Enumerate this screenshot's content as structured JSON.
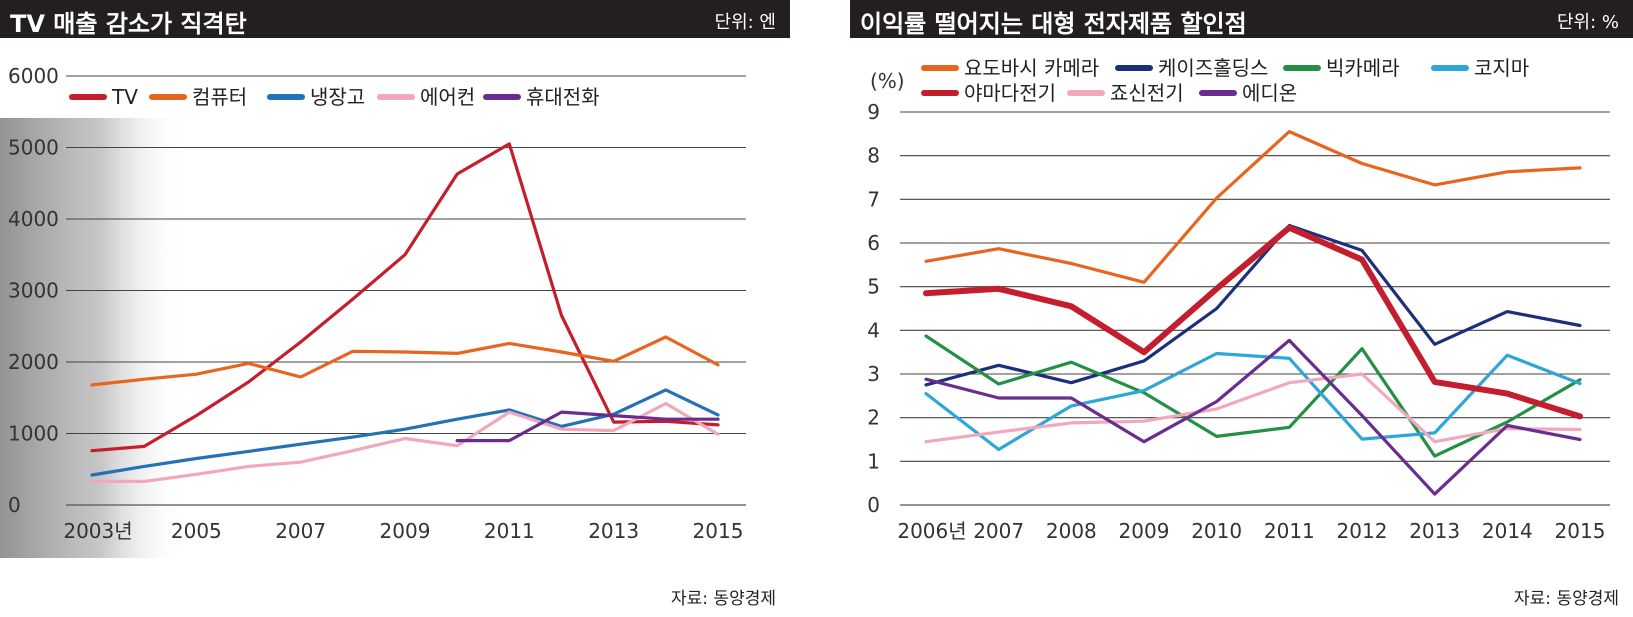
{
  "left": {
    "title": "TV 매출 감소가 직격탄",
    "unit": "단위: 엔",
    "source": "자료: 동양경제",
    "x_tick_labels": [
      "2003년",
      "2005",
      "2007",
      "2009",
      "2011",
      "2013",
      "2015"
    ],
    "y_tick_labels": [
      "0",
      "1000",
      "2000",
      "3000",
      "4000",
      "5000",
      "6000"
    ]
  },
  "right": {
    "title": "이익률 떨어지는 대형 전자제품 할인점",
    "unit": "단위: %",
    "source": "자료: 동양경제",
    "y_unit_label": "(%)",
    "x_tick_labels": [
      "2006년",
      "2007",
      "2008",
      "2009",
      "2010",
      "2011",
      "2012",
      "2013",
      "2014",
      "2015"
    ],
    "y_tick_labels": [
      "0",
      "1",
      "2",
      "3",
      "4",
      "5",
      "6",
      "7",
      "8",
      "9"
    ]
  },
  "chart_data": [
    {
      "type": "line",
      "title": "TV 매출 감소가 직격탄",
      "unit": "단위: 엔",
      "x": [
        2003,
        2004,
        2005,
        2006,
        2007,
        2008,
        2009,
        2010,
        2011,
        2012,
        2013,
        2014,
        2015
      ],
      "ylim": [
        0,
        6000
      ],
      "grid": true,
      "legend": "top",
      "series": [
        {
          "name": "TV",
          "color": "#c41e2e",
          "values": [
            760,
            820,
            1250,
            1720,
            2280,
            2880,
            3500,
            4630,
            5050,
            2650,
            1160,
            1170,
            1120
          ]
        },
        {
          "name": "컴퓨터",
          "color": "#e8651f",
          "values": [
            1680,
            1760,
            1830,
            1980,
            1790,
            2150,
            2140,
            2120,
            2260,
            2140,
            2010,
            2350,
            1960
          ]
        },
        {
          "name": "냉장고",
          "color": "#2272b5",
          "values": [
            420,
            540,
            650,
            750,
            850,
            950,
            1060,
            1200,
            1330,
            1100,
            1270,
            1610,
            1260
          ]
        },
        {
          "name": "에어컨",
          "color": "#f2a7bd",
          "values": [
            330,
            330,
            430,
            540,
            600,
            760,
            930,
            830,
            1300,
            1060,
            1040,
            1420,
            990
          ]
        },
        {
          "name": "휴대전화",
          "color": "#6a2c8e",
          "values": [
            null,
            null,
            null,
            null,
            null,
            null,
            null,
            900,
            900,
            1300,
            1250,
            1200,
            1200
          ]
        }
      ]
    },
    {
      "type": "line",
      "title": "이익률 떨어지는 대형 전자제품 할인점",
      "unit": "단위: %",
      "x": [
        2006,
        2007,
        2008,
        2009,
        2010,
        2011,
        2012,
        2013,
        2014,
        2015
      ],
      "ylim": [
        0,
        9
      ],
      "ylabel": "(%)",
      "grid": true,
      "legend": "top",
      "series": [
        {
          "name": "요도바시 카메라",
          "color": "#e8651f",
          "values": [
            5.58,
            5.87,
            5.53,
            5.1,
            7.03,
            8.55,
            7.82,
            7.33,
            7.63,
            7.72
          ]
        },
        {
          "name": "케이즈홀딩스",
          "color": "#1c2f7a",
          "values": [
            2.75,
            3.2,
            2.8,
            3.3,
            4.5,
            6.4,
            5.83,
            3.68,
            4.43,
            4.11
          ]
        },
        {
          "name": "빅카메라",
          "color": "#239045",
          "values": [
            3.87,
            2.77,
            3.27,
            2.57,
            1.57,
            1.78,
            3.58,
            1.12,
            1.9,
            2.87
          ]
        },
        {
          "name": "코지마",
          "color": "#2ea6d9",
          "values": [
            2.55,
            1.27,
            2.27,
            2.62,
            3.47,
            3.36,
            1.51,
            1.65,
            3.43,
            2.78
          ]
        },
        {
          "name": "야마다전기",
          "color": "#c41e2e",
          "values": [
            4.85,
            4.95,
            4.55,
            3.5,
            4.95,
            6.35,
            5.62,
            2.82,
            2.55,
            2.03
          ]
        },
        {
          "name": "죠신전기",
          "color": "#f2a7bd",
          "values": [
            1.45,
            1.67,
            1.88,
            1.92,
            2.2,
            2.8,
            3.0,
            1.45,
            1.75,
            1.73
          ]
        },
        {
          "name": "에디온",
          "color": "#6a2c8e",
          "values": [
            2.88,
            2.45,
            2.45,
            1.45,
            2.37,
            3.77,
            2.05,
            0.25,
            1.82,
            1.5
          ]
        }
      ]
    }
  ]
}
